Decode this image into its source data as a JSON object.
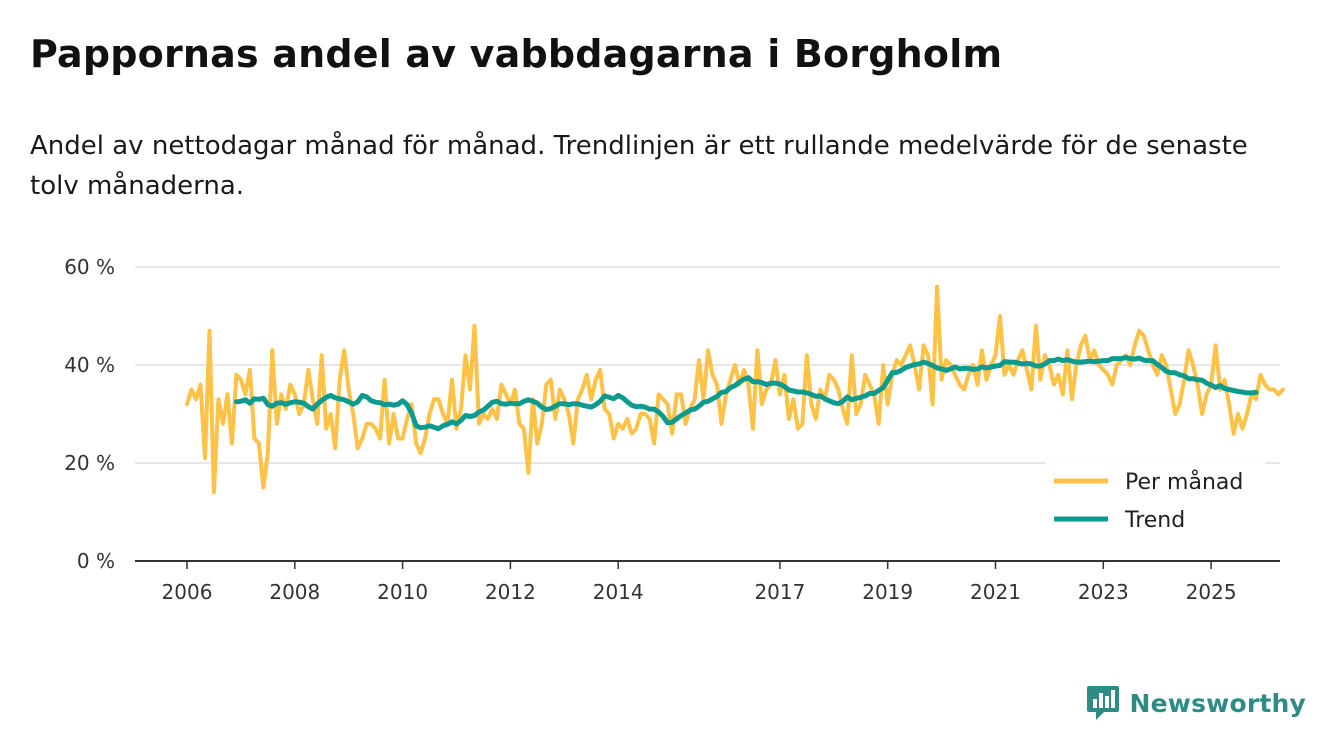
{
  "header": {
    "title": "Pappornas andel av vabbdagarna i Borgholm",
    "subtitle": "Andel av nettodagar månad för månad. Trendlinjen är ett rullande medelvärde för de senaste tolv månaderna."
  },
  "brand": {
    "name": "Newsworthy",
    "color": "#2e8c84"
  },
  "chart_data": {
    "type": "line",
    "title": "Pappornas andel av vabbdagarna i Borgholm",
    "subtitle": "Andel av nettodagar månad för månad. Trendlinjen är ett rullande medelvärde för de senaste tolv månaderna.",
    "xlabel": "",
    "ylabel": "",
    "ylim": [
      0,
      60
    ],
    "yticks": [
      0,
      20,
      40,
      60
    ],
    "ytick_labels": [
      "0 %",
      "20 %",
      "40 %",
      "60 %"
    ],
    "xlim": [
      2006,
      2025.9
    ],
    "xticks": [
      2006,
      2008,
      2010,
      2012,
      2014,
      2017,
      2019,
      2021,
      2023,
      2025
    ],
    "xtick_labels": [
      "2006",
      "2008",
      "2010",
      "2012",
      "2014",
      "2017",
      "2019",
      "2021",
      "2023",
      "2025"
    ],
    "grid": true,
    "legend_position": "bottom-right",
    "series": [
      {
        "name": "Per månad",
        "color": "#ffc247",
        "x_start": 2006.0,
        "step": 0.0833333,
        "values": [
          32,
          35,
          33,
          36,
          21,
          47,
          14,
          33,
          28,
          34,
          24,
          38,
          37,
          34,
          39,
          25,
          24,
          15,
          22,
          43,
          28,
          34,
          31,
          36,
          34,
          30,
          32,
          39,
          33,
          28,
          42,
          27,
          30,
          23,
          37,
          43,
          35,
          30,
          23,
          25,
          28,
          28,
          27,
          25,
          37,
          24,
          30,
          25,
          25,
          29,
          32,
          24,
          22,
          25,
          30,
          33,
          33,
          30,
          28,
          37,
          27,
          31,
          42,
          35,
          48,
          28,
          30,
          29,
          31,
          29,
          36,
          34,
          32,
          35,
          28,
          27,
          18,
          33,
          24,
          28,
          36,
          37,
          29,
          35,
          33,
          30,
          24,
          33,
          35,
          38,
          33,
          37,
          39,
          31,
          30,
          25,
          28,
          27,
          29,
          26,
          27,
          30,
          30,
          29,
          24,
          34,
          33,
          32,
          26,
          34,
          34,
          28,
          31,
          33,
          41,
          33,
          43,
          38,
          36,
          28,
          34,
          37,
          40,
          36,
          39,
          36,
          27,
          43,
          32,
          35,
          36,
          41,
          34,
          38,
          29,
          33,
          27,
          28,
          42,
          32,
          29,
          35,
          33,
          38,
          37,
          35,
          31,
          28,
          42,
          30,
          32,
          38,
          36,
          34,
          28,
          40,
          32,
          38,
          41,
          40,
          42,
          44,
          40,
          35,
          44,
          42,
          32,
          56,
          37,
          41,
          40,
          38,
          36,
          35,
          38,
          40,
          36,
          43,
          37,
          40,
          42,
          50,
          38,
          40,
          38,
          41,
          43,
          39,
          35,
          48,
          37,
          42,
          40,
          36,
          38,
          34,
          43,
          33,
          40,
          44,
          46,
          41,
          43,
          40,
          39,
          38,
          36,
          40,
          41,
          42,
          40,
          44,
          47,
          46,
          43,
          40,
          38,
          42,
          40,
          35,
          30,
          32,
          37,
          43,
          40,
          36,
          30,
          34,
          36,
          44,
          35,
          37,
          32,
          26,
          30,
          27,
          30,
          34,
          33,
          38,
          36,
          35,
          35,
          34,
          35
        ],
        "note": "values estimated from plot"
      },
      {
        "name": "Trend",
        "color": "#0f9a8e",
        "x_start": 2006.9167,
        "step": 0.0833333,
        "values": [
          32.5,
          32.6,
          32.9,
          32.2,
          33.1,
          33.0,
          33.2,
          31.9,
          31.6,
          32.2,
          32.3,
          32.0,
          32.3,
          32.5,
          32.4,
          32.2,
          31.5,
          31.0,
          32.0,
          32.8,
          33.4,
          33.8,
          33.3,
          33.1,
          32.9,
          32.5,
          32.0,
          32.5,
          33.8,
          33.5,
          32.7,
          32.4,
          32.3,
          31.9,
          32.0,
          31.8,
          32.0,
          32.7,
          31.9,
          30.2,
          27.6,
          27.2,
          27.3,
          27.6,
          27.3,
          27.0,
          27.6,
          27.9,
          28.4,
          28.0,
          28.7,
          29.7,
          29.5,
          29.7,
          30.4,
          30.8,
          31.6,
          32.4,
          32.6,
          32.1,
          32.0,
          32.2,
          32.1,
          32.1,
          32.6,
          32.9,
          32.6,
          32.2,
          31.4,
          30.9,
          31.1,
          31.6,
          32.1,
          32.1,
          31.9,
          32.1,
          32.1,
          31.8,
          31.6,
          31.4,
          31.9,
          32.6,
          33.7,
          33.4,
          33.1,
          33.8,
          33.3,
          32.5,
          31.8,
          31.5,
          31.6,
          31.4,
          31.0,
          31.0,
          30.4,
          29.5,
          28.2,
          28.3,
          29.0,
          29.7,
          30.2,
          30.8,
          31.0,
          31.6,
          32.4,
          32.6,
          33.1,
          33.6,
          34.4,
          34.6,
          35.4,
          35.8,
          36.5,
          37.1,
          37.4,
          36.6,
          36.6,
          36.4,
          36.0,
          36.3,
          36.3,
          36.1,
          35.6,
          34.9,
          34.7,
          34.5,
          34.5,
          34.3,
          34.0,
          33.6,
          33.7,
          33.1,
          32.7,
          32.3,
          32.1,
          32.6,
          33.5,
          32.9,
          33.2,
          33.4,
          33.7,
          34.2,
          34.2,
          34.8,
          35.4,
          36.9,
          38.4,
          38.5,
          38.9,
          39.5,
          39.8,
          40.1,
          40.2,
          40.6,
          40.3,
          39.9,
          39.4,
          39.2,
          38.9,
          39.2,
          39.6,
          39.2,
          39.3,
          39.3,
          39.1,
          39.2,
          39.6,
          39.4,
          39.6,
          39.8,
          39.9,
          40.7,
          40.6,
          40.6,
          40.4,
          40.2,
          40.3,
          40.2,
          39.8,
          39.8,
          40.2,
          40.9,
          40.9,
          41.2,
          40.9,
          41.1,
          40.8,
          40.6,
          40.6,
          40.7,
          40.8,
          40.7,
          40.8,
          40.9,
          40.9,
          41.3,
          41.3,
          41.3,
          41.5,
          41.3,
          41.2,
          41.4,
          41.0,
          40.9,
          40.9,
          40.1,
          39.5,
          38.7,
          38.4,
          38.4,
          38.0,
          37.8,
          37.2,
          37.2,
          37.0,
          36.9,
          36.3,
          35.9,
          35.4,
          35.8,
          35.2,
          35.0,
          34.8,
          34.6,
          34.5,
          34.3,
          34.3,
          34.4
        ]
      }
    ]
  }
}
